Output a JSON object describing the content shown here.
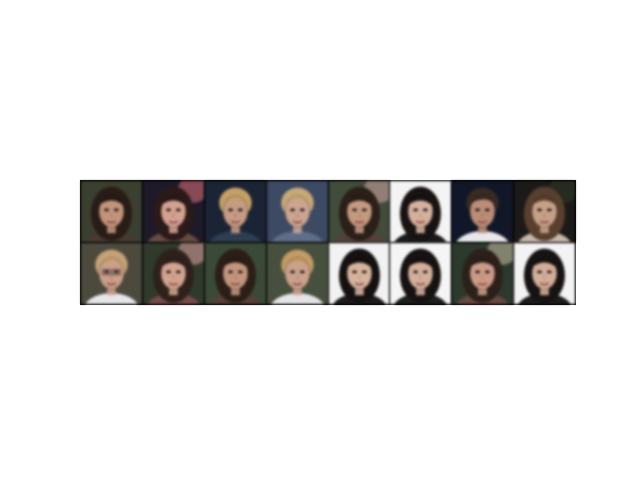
{
  "figure": {
    "rows": 2,
    "columns": 8,
    "frame_color": "#000000",
    "background": "#ffffff",
    "tiles": [
      {
        "bg": "#3a3f2e",
        "hair": "#2a1c15",
        "skin": "#c69377",
        "shirt": "#4a3a30",
        "hair_style": "long",
        "glasses": false
      },
      {
        "bg": "#1e1a2a",
        "hair": "#2b1a18",
        "skin": "#d8a08e",
        "shirt": "#6a4a40",
        "hair_style": "long",
        "glasses": false,
        "accent": "#e8707a"
      },
      {
        "bg": "#1a2436",
        "hair": "#c8a060",
        "skin": "#c99a80",
        "shirt": "#2c3e55",
        "hair_style": "short",
        "glasses": false
      },
      {
        "bg": "#3c4a66",
        "hair": "#caa970",
        "skin": "#cfa48e",
        "shirt": "#5c6e8c",
        "hair_style": "short",
        "glasses": false
      },
      {
        "bg": "#404c3a",
        "hair": "#2c1f18",
        "skin": "#c8987e",
        "shirt": "#5a4038",
        "hair_style": "long",
        "glasses": false,
        "accent": "#d9a8a0"
      },
      {
        "bg": "#f4f4f4",
        "hair": "#181312",
        "skin": "#d8b09a",
        "shirt": "#1a1a1a",
        "hair_style": "long",
        "glasses": false
      },
      {
        "bg": "#10172a",
        "hair": "#3a2a20",
        "skin": "#c08c72",
        "shirt": "#e8e8ec",
        "hair_style": "short",
        "glasses": false
      },
      {
        "bg": "#1c1a18",
        "hair": "#5a3f2c",
        "skin": "#caa084",
        "shirt": "#c9b8a8",
        "hair_style": "long",
        "glasses": false,
        "accent": "#2f3a24"
      },
      {
        "bg": "#4c4a3c",
        "hair": "#caa070",
        "skin": "#cf9e86",
        "shirt": "#e6e6ea",
        "hair_style": "short",
        "glasses": true
      },
      {
        "bg": "#2e3a2c",
        "hair": "#2f211a",
        "skin": "#d6a28c",
        "shirt": "#7a4a48",
        "hair_style": "long",
        "glasses": false,
        "accent": "#e3a0a0"
      },
      {
        "bg": "#3a4a36",
        "hair": "#2c1e16",
        "skin": "#c8947a",
        "shirt": "#5a3e36",
        "hair_style": "long",
        "glasses": false
      },
      {
        "bg": "#46503c",
        "hair": "#c69a5e",
        "skin": "#cfa088",
        "shirt": "#e4e4e8",
        "hair_style": "short",
        "glasses": false
      },
      {
        "bg": "#f2f2f2",
        "hair": "#151111",
        "skin": "#d9b29c",
        "shirt": "#1c1c1c",
        "hair_style": "long",
        "glasses": false
      },
      {
        "bg": "#f5f5f5",
        "hair": "#161212",
        "skin": "#d7ae98",
        "shirt": "#1e1e1e",
        "hair_style": "long",
        "glasses": false
      },
      {
        "bg": "#2a3a2c",
        "hair": "#2d2019",
        "skin": "#d09a84",
        "shirt": "#6e4640",
        "hair_style": "long",
        "glasses": false,
        "accent": "#c9c0a0"
      },
      {
        "bg": "#f3f3f3",
        "hair": "#171312",
        "skin": "#d6ad96",
        "shirt": "#1c1c1c",
        "hair_style": "long",
        "glasses": false
      }
    ]
  }
}
